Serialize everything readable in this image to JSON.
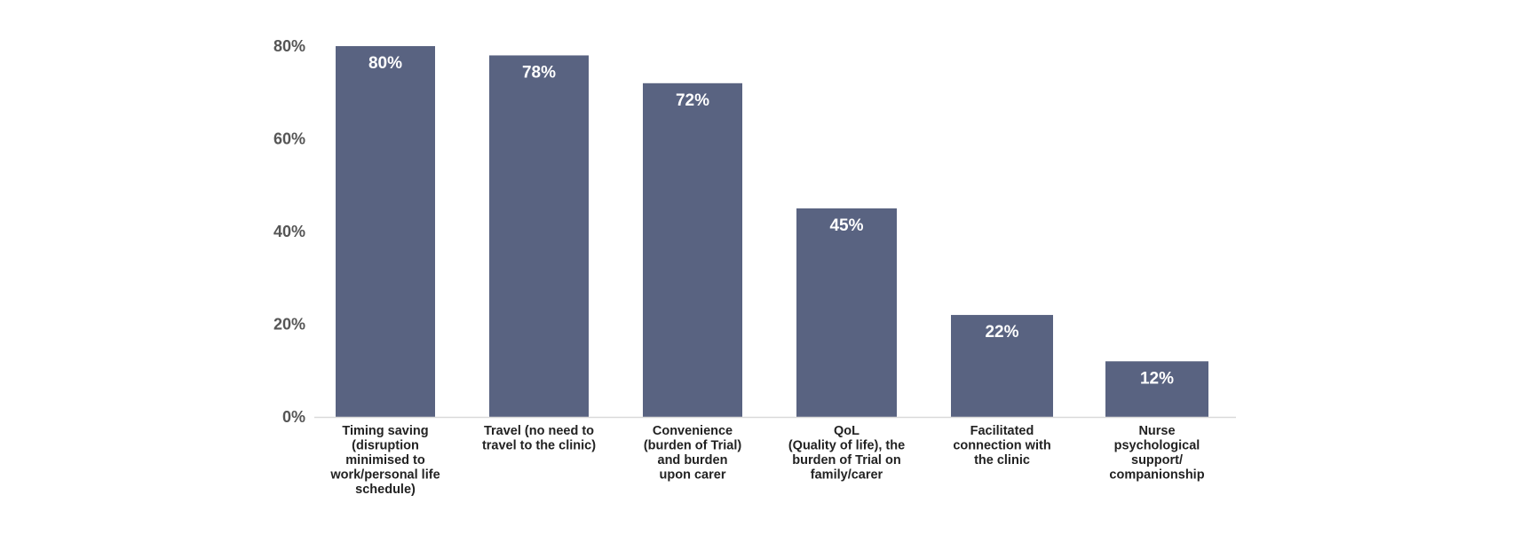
{
  "chart_data": {
    "type": "bar",
    "categories": [
      [
        "Timing saving",
        "(disruption",
        "minimised to",
        "work/personal life",
        "schedule)"
      ],
      [
        "Travel (no need to",
        "travel to the clinic)"
      ],
      [
        "Convenience",
        "(burden of Trial)",
        "and burden",
        "upon carer"
      ],
      [
        "QoL",
        "(Quality of life), the",
        "burden of Trial on",
        "family/carer"
      ],
      [
        "Facilitated",
        "connection with",
        "the clinic"
      ],
      [
        "Nurse",
        "psychological",
        "support/",
        "companionship"
      ]
    ],
    "values": [
      80,
      78,
      72,
      45,
      22,
      12
    ],
    "data_labels": [
      "80%",
      "78%",
      "72%",
      "45%",
      "22%",
      "12%"
    ],
    "yticks": [
      0,
      20,
      40,
      60,
      80
    ],
    "ytick_labels": [
      "0%",
      "20%",
      "40%",
      "60%",
      "80%"
    ],
    "ylim": [
      0,
      80
    ],
    "title": "",
    "xlabel": "",
    "ylabel": "",
    "grid": false,
    "legend": "none",
    "colors": {
      "bar": "#596381",
      "bar_label": "#ffffff",
      "tick_label": "#555555",
      "category_label": "#222222",
      "axis_line": "#d9d9d9"
    }
  }
}
